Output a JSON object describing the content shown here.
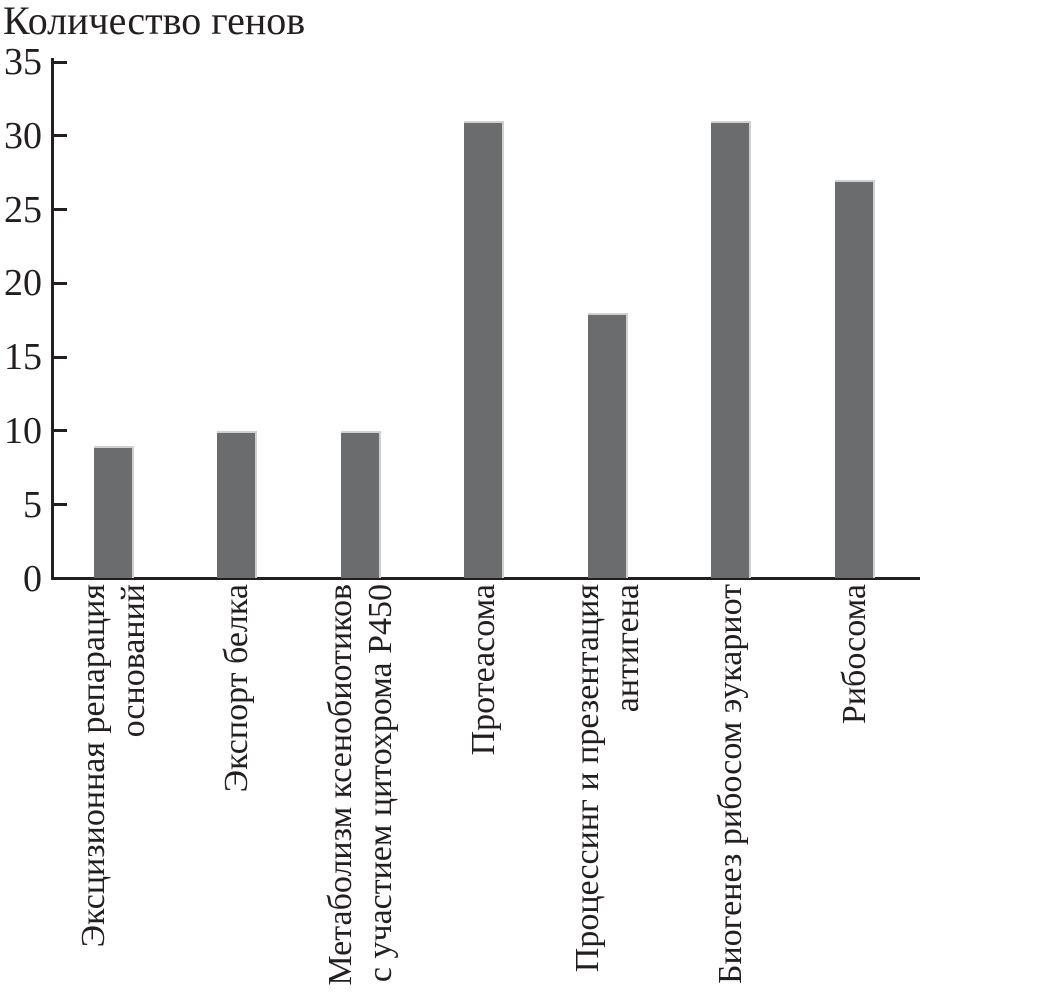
{
  "chart_data": {
    "type": "bar",
    "title": "Количество генов",
    "ylabel": "Количество генов",
    "xlabel": "",
    "categories": [
      "Эксцизионная репарация\nоснований",
      "Экспорт белка",
      "Метаболизм ксенобиотиков\nс участием цитохрома P450",
      "Протеасома",
      "Процессинг и презентация\nантигена",
      "Биогенез рибосом эукариот",
      "Рибосома"
    ],
    "values": [
      9,
      10,
      10,
      31,
      18,
      31,
      27
    ],
    "ylim": [
      0,
      35
    ],
    "yticks": [
      0,
      5,
      10,
      15,
      20,
      25,
      30,
      35
    ],
    "grid": false,
    "legend": false,
    "bar_color": "#6b6c6e",
    "axis_color": "#231f20"
  }
}
